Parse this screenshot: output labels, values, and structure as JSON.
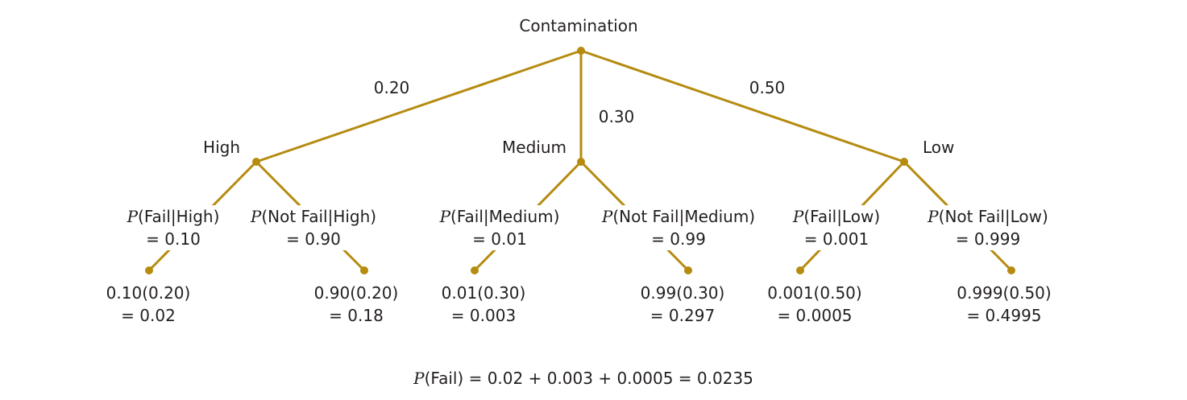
{
  "root": {
    "label": "Contamination"
  },
  "branches": [
    {
      "key": "high",
      "label": "High",
      "prob": "0.20",
      "fail": {
        "expr": "(Fail|High)",
        "value": "= 0.10",
        "result_expr": "0.10(0.20)",
        "result": "= 0.02"
      },
      "notfail": {
        "expr": "(Not Fail|High)",
        "value": "= 0.90",
        "result_expr": "0.90(0.20)",
        "result": "= 0.18"
      }
    },
    {
      "key": "medium",
      "label": "Medium",
      "prob": "0.30",
      "fail": {
        "expr": "(Fail|Medium)",
        "value": "= 0.01",
        "result_expr": "0.01(0.30)",
        "result": "= 0.003"
      },
      "notfail": {
        "expr": "(Not Fail|Medium)",
        "value": "= 0.99",
        "result_expr": "0.99(0.30)",
        "result": "= 0.297"
      }
    },
    {
      "key": "low",
      "label": "Low",
      "prob": "0.50",
      "fail": {
        "expr": "(Fail|Low)",
        "value": "= 0.001",
        "result_expr": "0.001(0.50)",
        "result": "= 0.0005"
      },
      "notfail": {
        "expr": "(Not Fail|Low)",
        "value": "= 0.999",
        "result_expr": "0.999(0.50)",
        "result": "= 0.4995"
      }
    }
  ],
  "prob_symbol": "P",
  "total": {
    "expr": "(Fail) = 0.02 + 0.003 + 0.0005 = 0.0235"
  },
  "colors": {
    "line": "#b58b10",
    "text": "#231f20"
  }
}
